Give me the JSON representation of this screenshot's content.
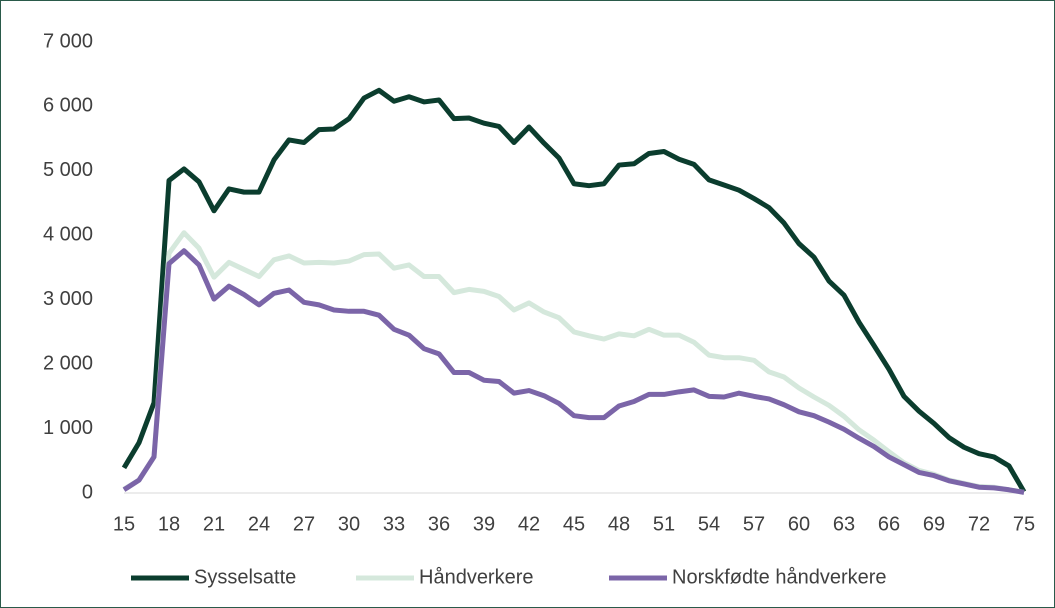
{
  "chart_data": {
    "type": "line",
    "x": [
      15,
      16,
      17,
      18,
      19,
      20,
      21,
      22,
      23,
      24,
      25,
      26,
      27,
      28,
      29,
      30,
      31,
      32,
      33,
      34,
      35,
      36,
      37,
      38,
      39,
      40,
      41,
      42,
      43,
      44,
      45,
      46,
      47,
      48,
      49,
      50,
      51,
      52,
      53,
      54,
      55,
      56,
      57,
      58,
      59,
      60,
      61,
      62,
      63,
      64,
      65,
      66,
      67,
      68,
      69,
      70,
      71,
      72,
      73,
      74,
      75
    ],
    "xlim": [
      15,
      75
    ],
    "xticks": [
      15,
      18,
      21,
      24,
      27,
      30,
      33,
      36,
      39,
      42,
      45,
      48,
      51,
      54,
      57,
      60,
      63,
      66,
      69,
      72,
      75
    ],
    "ylim": [
      0,
      7000
    ],
    "yticks": [
      0,
      {
        "value": 1000,
        "label": "1 000"
      },
      {
        "value": 2000,
        "label": "2 000"
      },
      {
        "value": 3000,
        "label": "3 000"
      },
      {
        "value": 4000,
        "label": "4 000"
      },
      {
        "value": 5000,
        "label": "5 000"
      },
      {
        "value": 6000,
        "label": "6 000"
      },
      {
        "value": 7000,
        "label": "7 000"
      }
    ],
    "grid": false,
    "legend": "bottom",
    "series": [
      {
        "name": "Sysselsatte",
        "color": "#0b3d2e",
        "values": [
          390,
          780,
          1400,
          4850,
          5030,
          4830,
          4380,
          4720,
          4670,
          4670,
          5170,
          5480,
          5440,
          5640,
          5650,
          5810,
          6130,
          6250,
          6080,
          6150,
          6070,
          6100,
          5810,
          5820,
          5740,
          5690,
          5440,
          5680,
          5430,
          5200,
          4800,
          4770,
          4800,
          5090,
          5110,
          5270,
          5300,
          5180,
          5100,
          4860,
          4780,
          4700,
          4570,
          4430,
          4190,
          3870,
          3660,
          3290,
          3070,
          2650,
          2290,
          1920,
          1500,
          1270,
          1080,
          860,
          710,
          610,
          560,
          420,
          20
        ]
      },
      {
        "name": "Håndverkere",
        "color": "#d5e8dc",
        "values": [
          60,
          200,
          560,
          3720,
          4040,
          3800,
          3350,
          3580,
          3470,
          3360,
          3620,
          3680,
          3570,
          3580,
          3570,
          3600,
          3700,
          3710,
          3490,
          3540,
          3360,
          3360,
          3110,
          3160,
          3130,
          3050,
          2840,
          2950,
          2810,
          2720,
          2500,
          2440,
          2390,
          2470,
          2440,
          2540,
          2450,
          2450,
          2340,
          2140,
          2100,
          2100,
          2060,
          1880,
          1800,
          1630,
          1490,
          1360,
          1190,
          980,
          820,
          640,
          470,
          350,
          290,
          200,
          150,
          100,
          90,
          50,
          10
        ]
      },
      {
        "name": "Norskfødte håndverkere",
        "color": "#7b65a8",
        "values": [
          50,
          200,
          560,
          3560,
          3760,
          3540,
          3010,
          3210,
          3080,
          2920,
          3100,
          3150,
          2960,
          2920,
          2840,
          2820,
          2820,
          2760,
          2540,
          2450,
          2240,
          2160,
          1870,
          1870,
          1750,
          1730,
          1550,
          1590,
          1510,
          1390,
          1200,
          1170,
          1170,
          1350,
          1420,
          1530,
          1530,
          1570,
          1600,
          1500,
          1490,
          1550,
          1500,
          1460,
          1370,
          1260,
          1200,
          1100,
          990,
          850,
          720,
          560,
          440,
          320,
          270,
          190,
          140,
          90,
          80,
          50,
          10
        ]
      }
    ]
  }
}
